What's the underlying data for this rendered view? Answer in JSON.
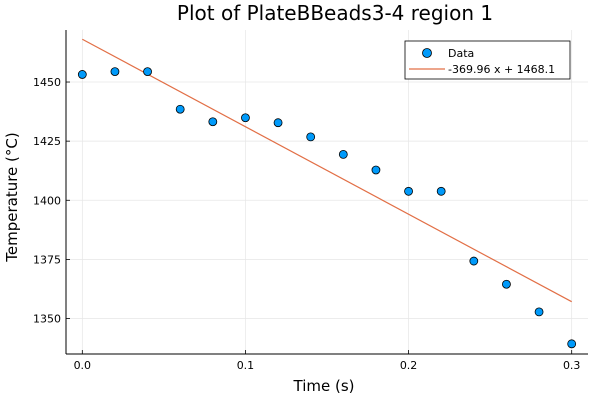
{
  "chart_data": {
    "type": "scatter",
    "title": "Plot of PlateBBeads3-4 region 1",
    "xlabel": "Time (s)",
    "ylabel": "Temperature (°C)",
    "xlim": [
      -0.01,
      0.31
    ],
    "ylim": [
      1335,
      1472
    ],
    "xticks": [
      0.0,
      0.1,
      0.2,
      0.3
    ],
    "xtick_labels": [
      "0.0",
      "0.1",
      "0.2",
      "0.3"
    ],
    "yticks": [
      1350,
      1375,
      1400,
      1425,
      1450
    ],
    "ytick_labels": [
      "1350",
      "1375",
      "1400",
      "1425",
      "1450"
    ],
    "grid": true,
    "legend_position": "top-right",
    "series": [
      {
        "name": "Data",
        "kind": "scatter",
        "color": "#009AFA",
        "x": [
          0.0,
          0.02,
          0.04,
          0.06,
          0.08,
          0.1,
          0.12,
          0.14,
          0.16,
          0.18,
          0.2,
          0.22,
          0.24,
          0.26,
          0.28,
          0.3
        ],
        "y": [
          1453.2,
          1454.4,
          1454.4,
          1438.5,
          1433.2,
          1434.9,
          1432.8,
          1426.8,
          1419.4,
          1412.8,
          1403.8,
          1403.8,
          1374.3,
          1364.5,
          1352.8,
          1339.3
        ]
      },
      {
        "name": "-369.96 x + 1468.1",
        "kind": "line",
        "color": "#E26F46",
        "slope": -369.96,
        "intercept": 1468.1,
        "x": [
          0.0,
          0.3
        ]
      }
    ]
  }
}
